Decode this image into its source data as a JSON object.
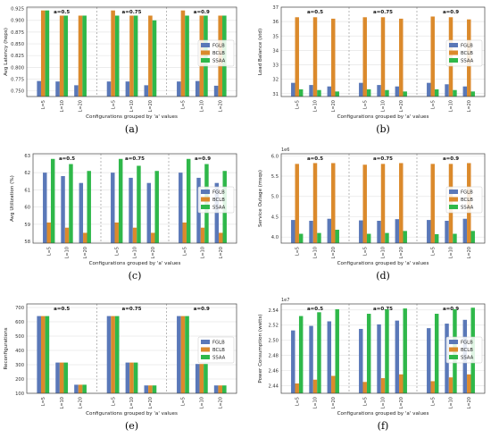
{
  "figure": {
    "legend_labels": [
      "FGLB",
      "BCLB",
      "SSAA"
    ],
    "colors": {
      "FGLB": "#5a78b8",
      "BCLB": "#db8a2c",
      "SSAA": "#2fb84a"
    },
    "group_titles": [
      "a=0.5",
      "a=0.75",
      "a=0.9"
    ],
    "x_tick_labels": [
      "L=5",
      "L=10",
      "L=20"
    ]
  },
  "chart_data": [
    {
      "id": "a",
      "caption": "(a)",
      "type": "bar",
      "title": "",
      "ylabel": "Avg Latency (hops)",
      "xlabel": "Configurations grouped by 'a' values",
      "ylim": [
        0.738,
        0.928
      ],
      "yticks": [
        0.75,
        0.775,
        0.8,
        0.825,
        0.85,
        0.875,
        0.9,
        0.925
      ],
      "ytick_labels": [
        "0.750",
        "0.775",
        "0.800",
        "0.825",
        "0.850",
        "0.875",
        "0.900",
        "0.925"
      ],
      "legend": "right",
      "groups": [
        "a=0.5",
        "a=0.75",
        "a=0.9"
      ],
      "categories": [
        "L=5",
        "L=10",
        "L=20"
      ],
      "series": [
        {
          "name": "FGLB",
          "values": [
            [
              0.771,
              0.77,
              0.762
            ],
            [
              0.77,
              0.77,
              0.762
            ],
            [
              0.77,
              0.771,
              0.761
            ]
          ]
        },
        {
          "name": "BCLB",
          "values": [
            [
              0.921,
              0.91,
              0.91
            ],
            [
              0.921,
              0.91,
              0.91
            ],
            [
              0.921,
              0.91,
              0.91
            ]
          ]
        },
        {
          "name": "SSAA",
          "values": [
            [
              0.921,
              0.91,
              0.91
            ],
            [
              0.91,
              0.91,
              0.9
            ],
            [
              0.91,
              0.91,
              0.91
            ]
          ]
        }
      ]
    },
    {
      "id": "b",
      "caption": "(b)",
      "type": "bar",
      "title": "",
      "ylabel": "Load Balance (std)",
      "xlabel": "Configurations grouped by 'a' values",
      "ylim": [
        30.8,
        37.0
      ],
      "yticks": [
        31,
        32,
        33,
        34,
        35,
        36,
        37
      ],
      "ytick_labels": [
        "31",
        "32",
        "33",
        "34",
        "35",
        "36",
        "37"
      ],
      "legend": "right",
      "groups": [
        "a=0.5",
        "a=0.75",
        "a=0.9"
      ],
      "categories": [
        "L=5",
        "L=10",
        "L=20"
      ],
      "series": [
        {
          "name": "FGLB",
          "values": [
            [
              31.75,
              31.6,
              31.5
            ],
            [
              31.75,
              31.6,
              31.5
            ],
            [
              31.75,
              31.65,
              31.5
            ]
          ]
        },
        {
          "name": "BCLB",
          "values": [
            [
              36.3,
              36.3,
              36.2
            ],
            [
              36.3,
              36.3,
              36.2
            ],
            [
              36.35,
              36.3,
              36.15
            ]
          ]
        },
        {
          "name": "SSAA",
          "values": [
            [
              31.3,
              31.25,
              31.15
            ],
            [
              31.3,
              31.25,
              31.15
            ],
            [
              31.3,
              31.25,
              31.15
            ]
          ]
        }
      ]
    },
    {
      "id": "c",
      "caption": "(c)",
      "type": "bar",
      "title": "",
      "ylabel": "Avg Utilization (%)",
      "xlabel": "Configurations grouped by 'a' values",
      "ylim": [
        57.9,
        63.1
      ],
      "yticks": [
        58,
        59,
        60,
        61,
        62,
        63
      ],
      "ytick_labels": [
        "58",
        "59",
        "60",
        "61",
        "62",
        "63"
      ],
      "legend": "right",
      "groups": [
        "a=0.5",
        "a=0.75",
        "a=0.9"
      ],
      "categories": [
        "L=5",
        "L=10",
        "L=20"
      ],
      "series": [
        {
          "name": "FGLB",
          "values": [
            [
              62.0,
              61.8,
              61.4
            ],
            [
              62.0,
              61.7,
              61.4
            ],
            [
              62.0,
              61.7,
              61.4
            ]
          ]
        },
        {
          "name": "BCLB",
          "values": [
            [
              59.1,
              58.8,
              58.5
            ],
            [
              59.1,
              58.8,
              58.5
            ],
            [
              59.1,
              58.8,
              58.5
            ]
          ]
        },
        {
          "name": "SSAA",
          "values": [
            [
              62.8,
              62.5,
              62.1
            ],
            [
              62.8,
              62.4,
              62.1
            ],
            [
              62.8,
              62.5,
              62.1
            ]
          ]
        }
      ]
    },
    {
      "id": "d",
      "caption": "(d)",
      "type": "bar",
      "title": "",
      "ylabel": "Service Outage (msqs)",
      "xlabel": "Configurations grouped by 'a' values",
      "scale_note": "1e6",
      "ylim": [
        3.85,
        6.05
      ],
      "yticks": [
        4.0,
        4.5,
        5.0,
        5.5,
        6.0
      ],
      "ytick_labels": [
        "4.0",
        "4.5",
        "5.0",
        "5.5",
        "6.0"
      ],
      "legend": "right",
      "groups": [
        "a=0.5",
        "a=0.75",
        "a=0.9"
      ],
      "categories": [
        "L=5",
        "L=10",
        "L=20"
      ],
      "series": [
        {
          "name": "FGLB",
          "values": [
            [
              4.42,
              4.4,
              4.45
            ],
            [
              4.41,
              4.4,
              4.44
            ],
            [
              4.42,
              4.4,
              4.45
            ]
          ]
        },
        {
          "name": "BCLB",
          "values": [
            [
              5.8,
              5.82,
              5.82
            ],
            [
              5.78,
              5.8,
              5.82
            ],
            [
              5.8,
              5.8,
              5.82
            ]
          ]
        },
        {
          "name": "SSAA",
          "values": [
            [
              4.08,
              4.1,
              4.18
            ],
            [
              4.08,
              4.1,
              4.15
            ],
            [
              4.07,
              4.08,
              4.15
            ]
          ]
        }
      ]
    },
    {
      "id": "e",
      "caption": "(e)",
      "type": "bar",
      "title": "",
      "ylabel": "Reconfigurations",
      "xlabel": "Configurations grouped by 'a' values",
      "ylim": [
        100,
        725
      ],
      "yticks": [
        100,
        200,
        300,
        400,
        500,
        600,
        700
      ],
      "ytick_labels": [
        "100",
        "200",
        "300",
        "400",
        "500",
        "600",
        "700"
      ],
      "legend": "right",
      "groups": [
        "a=0.5",
        "a=0.75",
        "a=0.9"
      ],
      "categories": [
        "L=5",
        "L=10",
        "L=20"
      ],
      "series": [
        {
          "name": "FGLB",
          "values": [
            [
              640,
              315,
              160
            ],
            [
              640,
              315,
              155
            ],
            [
              640,
              305,
              155
            ]
          ]
        },
        {
          "name": "BCLB",
          "values": [
            [
              640,
              315,
              160
            ],
            [
              640,
              315,
              155
            ],
            [
              640,
              305,
              155
            ]
          ]
        },
        {
          "name": "SSAA",
          "values": [
            [
              640,
              315,
              160
            ],
            [
              640,
              315,
              155
            ],
            [
              640,
              305,
              155
            ]
          ]
        }
      ]
    },
    {
      "id": "f",
      "caption": "(f)",
      "type": "bar",
      "title": "",
      "ylabel": "Power Consumption (watts)",
      "xlabel": "Configurations grouped by 'a' values",
      "scale_note": "1e7",
      "ylim": [
        2.43,
        2.548
      ],
      "yticks": [
        2.44,
        2.46,
        2.48,
        2.5,
        2.52,
        2.54
      ],
      "ytick_labels": [
        "2.44",
        "2.46",
        "2.48",
        "2.50",
        "2.52",
        "2.54"
      ],
      "legend": "right",
      "groups": [
        "a=0.5",
        "a=0.75",
        "a=0.9"
      ],
      "categories": [
        "L=5",
        "L=10",
        "L=20"
      ],
      "series": [
        {
          "name": "FGLB",
          "values": [
            [
              2.513,
              2.519,
              2.525
            ],
            [
              2.515,
              2.521,
              2.526
            ],
            [
              2.516,
              2.522,
              2.527
            ]
          ]
        },
        {
          "name": "BCLB",
          "values": [
            [
              2.443,
              2.448,
              2.453
            ],
            [
              2.445,
              2.45,
              2.455
            ],
            [
              2.446,
              2.451,
              2.455
            ]
          ]
        },
        {
          "name": "SSAA",
          "values": [
            [
              2.532,
              2.537,
              2.541
            ],
            [
              2.535,
              2.541,
              2.542
            ],
            [
              2.535,
              2.541,
              2.543
            ]
          ]
        }
      ]
    }
  ]
}
